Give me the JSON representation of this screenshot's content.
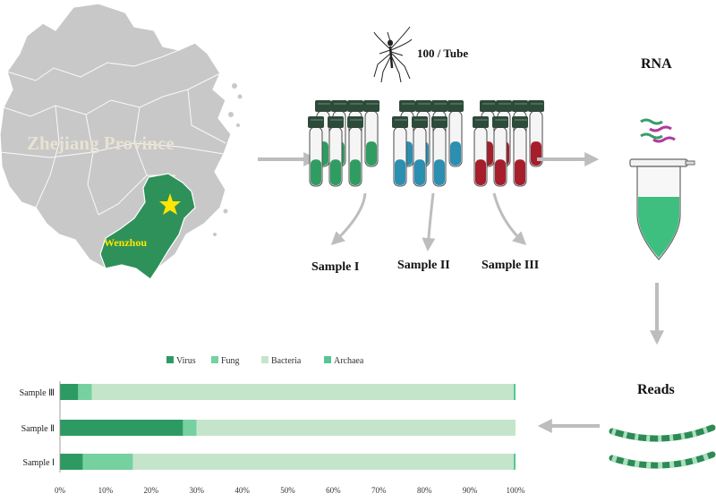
{
  "map": {
    "province_label": "Zhejiang Province",
    "city_label": "Wenzhou",
    "colors": {
      "province": "#c8c8c8",
      "city": "#2e9159",
      "star": "#ffe600",
      "province_text": "#e8e3d2",
      "city_text": "#ffe600"
    }
  },
  "mosquito": {
    "label": "100 / Tube"
  },
  "samples": [
    {
      "label": "Sample I",
      "liquid_color": "#2f9d62"
    },
    {
      "label": "Sample II",
      "liquid_color": "#2a8fb0"
    },
    {
      "label": "Sample III",
      "liquid_color": "#a61e2b"
    }
  ],
  "rna": {
    "label": "RNA",
    "tube_color": "#3fbf7f"
  },
  "reads": {
    "label": "Reads"
  },
  "colors": {
    "arrow": "#bdbdbd",
    "cap": "#2d4a3a"
  },
  "chart_data": {
    "type": "bar",
    "orientation": "horizontal",
    "stacked": true,
    "categories": [
      "Sample Ⅲ",
      "Sample Ⅱ",
      "Sample Ⅰ"
    ],
    "series": [
      {
        "name": "Virus",
        "color": "#2e9a63",
        "values": [
          4,
          27,
          5
        ]
      },
      {
        "name": "Fung",
        "color": "#76d1a0",
        "values": [
          3,
          3,
          11
        ]
      },
      {
        "name": "Bacteria",
        "color": "#c5e5cb",
        "values": [
          92.6,
          70,
          83.6
        ]
      },
      {
        "name": "Archaea",
        "color": "#55c794",
        "values": [
          0.4,
          0,
          0.4
        ]
      }
    ],
    "x_ticks": [
      "0%",
      "10%",
      "20%",
      "30%",
      "40%",
      "50%",
      "60%",
      "70%",
      "80%",
      "90%",
      "100%"
    ],
    "xlim": [
      0,
      100
    ],
    "legend_position": "top"
  }
}
